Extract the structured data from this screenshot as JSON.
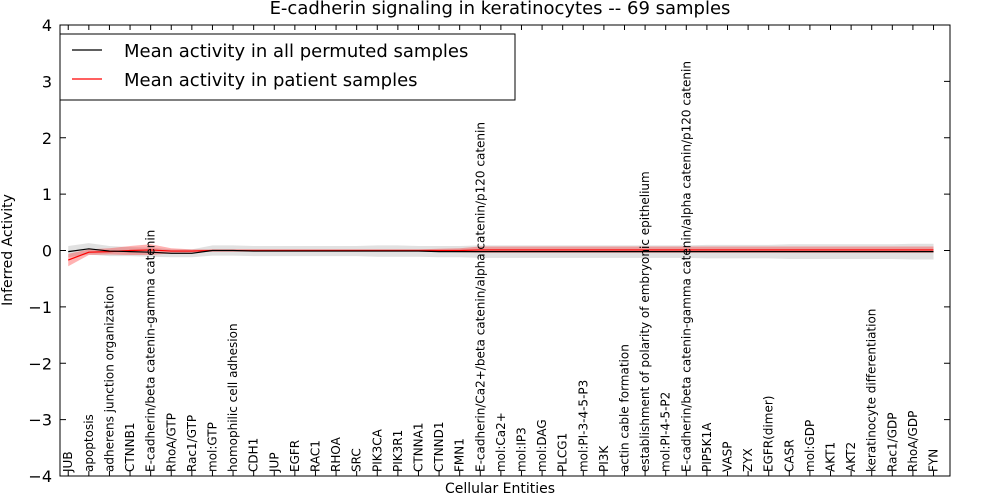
{
  "chart_data": {
    "type": "line",
    "title": "E-cadherin signaling in keratinocytes -- 69 samples",
    "xlabel": "Cellular Entities",
    "ylabel": "Inferred Activity",
    "ylim": [
      -4,
      4
    ],
    "yticks": [
      "−4",
      "−3",
      "−2",
      "−1",
      "0",
      "1",
      "2",
      "3",
      "4"
    ],
    "ytick_values": [
      -4,
      -3,
      -2,
      -1,
      0,
      1,
      2,
      3,
      4
    ],
    "legend": {
      "placement": "top-left",
      "entries": [
        {
          "label": "Mean activity in all permuted samples",
          "color": "#000000"
        },
        {
          "label": "Mean activity in patient samples",
          "color": "#ff0000"
        }
      ]
    },
    "categories": [
      "JUB",
      "apoptosis",
      "adherens junction organization",
      "CTNNB1",
      "E-cadherin/beta catenin-gamma catenin",
      "RhoA/GTP",
      "Rac1/GTP",
      "mol:GTP",
      "homophilic cell adhesion",
      "CDH1",
      "JUP",
      "EGFR",
      "RAC1",
      "RHOA",
      "SRC",
      "PIK3CA",
      "PIK3R1",
      "CTNNA1",
      "CTNND1",
      "FMN1",
      "E-cadherin/Ca2+/beta catenin/alpha catenin/p120 catenin",
      "mol:Ca2+",
      "mol:IP3",
      "mol:DAG",
      "PLCG1",
      "mol:PI-3-4-5-P3",
      "PI3K",
      "actin cable formation",
      "establishment of polarity of embryonic epithelium",
      "mol:PI-4-5-P2",
      "E-cadherin/beta catenin-gamma catenin/alpha catenin/p120 catenin",
      "PIP5K1A",
      "VASP",
      "ZYX",
      "EGFR(dimer)",
      "CASR",
      "mol:GDP",
      "AKT1",
      "AKT2",
      "keratinocyte differentiation",
      "Rac1/GDP",
      "RhoA/GDP",
      "FYN"
    ],
    "series": [
      {
        "name": "Mean activity in all permuted samples",
        "color": "#000000",
        "values": [
          -0.02,
          0.03,
          -0.01,
          -0.02,
          -0.03,
          -0.05,
          -0.05,
          0.0,
          0.0,
          -0.01,
          -0.01,
          -0.01,
          -0.01,
          -0.01,
          -0.01,
          -0.01,
          -0.01,
          -0.01,
          -0.02,
          -0.02,
          -0.02,
          -0.02,
          -0.02,
          -0.02,
          -0.02,
          -0.02,
          -0.02,
          -0.02,
          -0.02,
          -0.02,
          -0.02,
          -0.02,
          -0.02,
          -0.02,
          -0.02,
          -0.02,
          -0.02,
          -0.02,
          -0.02,
          -0.02,
          -0.02,
          -0.02,
          -0.02
        ],
        "lower": [
          -0.12,
          -0.07,
          -0.1,
          -0.1,
          -0.11,
          -0.12,
          -0.12,
          -0.09,
          -0.09,
          -0.1,
          -0.1,
          -0.1,
          -0.1,
          -0.1,
          -0.1,
          -0.11,
          -0.11,
          -0.11,
          -0.12,
          -0.12,
          -0.13,
          -0.13,
          -0.13,
          -0.13,
          -0.13,
          -0.13,
          -0.13,
          -0.13,
          -0.13,
          -0.13,
          -0.13,
          -0.14,
          -0.14,
          -0.14,
          -0.14,
          -0.15,
          -0.15,
          -0.15,
          -0.15,
          -0.15,
          -0.15,
          -0.16,
          -0.16
        ],
        "upper": [
          0.08,
          0.13,
          0.08,
          0.06,
          0.05,
          0.02,
          0.02,
          0.09,
          0.09,
          0.08,
          0.08,
          0.08,
          0.08,
          0.08,
          0.08,
          0.09,
          0.09,
          0.08,
          0.08,
          0.08,
          0.09,
          0.09,
          0.09,
          0.09,
          0.09,
          0.09,
          0.09,
          0.09,
          0.09,
          0.09,
          0.09,
          0.1,
          0.1,
          0.1,
          0.1,
          0.11,
          0.11,
          0.11,
          0.11,
          0.11,
          0.11,
          0.12,
          0.12
        ]
      },
      {
        "name": "Mean activity in patient samples",
        "color": "#ff0000",
        "values": [
          -0.17,
          -0.03,
          -0.02,
          0.0,
          0.01,
          -0.01,
          -0.01,
          0.0,
          0.0,
          0.0,
          0.0,
          0.0,
          0.0,
          0.0,
          0.0,
          0.0,
          0.0,
          0.0,
          0.0,
          0.0,
          0.01,
          0.01,
          0.01,
          0.01,
          0.01,
          0.01,
          0.01,
          0.01,
          0.01,
          0.01,
          0.01,
          0.01,
          0.01,
          0.01,
          0.01,
          0.01,
          0.01,
          0.01,
          0.01,
          0.01,
          0.01,
          0.01,
          0.01
        ],
        "lower": [
          -0.28,
          -0.08,
          -0.07,
          -0.08,
          -0.08,
          -0.05,
          -0.04,
          -0.02,
          -0.02,
          -0.02,
          -0.02,
          -0.02,
          -0.02,
          -0.02,
          -0.02,
          -0.02,
          -0.02,
          -0.02,
          -0.02,
          -0.03,
          -0.04,
          -0.04,
          -0.04,
          -0.04,
          -0.04,
          -0.04,
          -0.04,
          -0.04,
          -0.04,
          -0.04,
          -0.04,
          -0.04,
          -0.04,
          -0.04,
          -0.04,
          -0.04,
          -0.04,
          -0.04,
          -0.04,
          -0.04,
          -0.04,
          -0.04,
          -0.04
        ],
        "upper": [
          -0.06,
          0.02,
          0.04,
          0.08,
          0.11,
          0.04,
          0.02,
          0.02,
          0.02,
          0.02,
          0.02,
          0.02,
          0.02,
          0.02,
          0.02,
          0.02,
          0.02,
          0.02,
          0.03,
          0.04,
          0.07,
          0.07,
          0.07,
          0.07,
          0.07,
          0.07,
          0.07,
          0.07,
          0.07,
          0.07,
          0.07,
          0.07,
          0.07,
          0.07,
          0.07,
          0.07,
          0.07,
          0.07,
          0.07,
          0.07,
          0.07,
          0.07,
          0.07
        ]
      }
    ]
  }
}
